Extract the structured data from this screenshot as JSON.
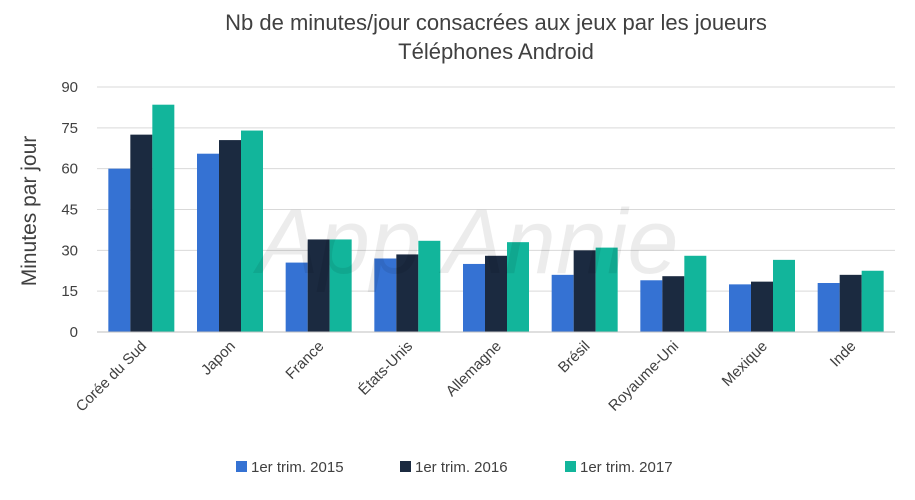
{
  "chart_data": {
    "type": "bar",
    "title": "Nb de minutes/jour consacrées aux jeux par les joueurs",
    "subtitle": "Téléphones Android",
    "ylabel": "Minutes par jour",
    "xlabel": "",
    "ylim": [
      0,
      90
    ],
    "yticks": [
      "0",
      "15",
      "30",
      "45",
      "60",
      "75",
      "90"
    ],
    "grid": true,
    "legend_position": "bottom",
    "categories": [
      "Corée du Sud",
      "Japon",
      "France",
      "États-Unis",
      "Allemagne",
      "Brésil",
      "Royaume-Uni",
      "Mexique",
      "Inde"
    ],
    "series": [
      {
        "name": "1er trim. 2015",
        "color": "#3572d3",
        "values": [
          60,
          65.5,
          25.5,
          27,
          25,
          21,
          19,
          17.5,
          18
        ]
      },
      {
        "name": "1er trim. 2016",
        "color": "#1b2a40",
        "values": [
          72.5,
          70.5,
          34,
          28.5,
          28,
          30,
          20.5,
          18.5,
          21
        ]
      },
      {
        "name": "1er trim. 2017",
        "color": "#12b59b",
        "values": [
          83.5,
          74,
          34,
          33.5,
          33,
          31,
          28,
          26.5,
          22.5
        ]
      }
    ],
    "watermark": "App Annie"
  }
}
